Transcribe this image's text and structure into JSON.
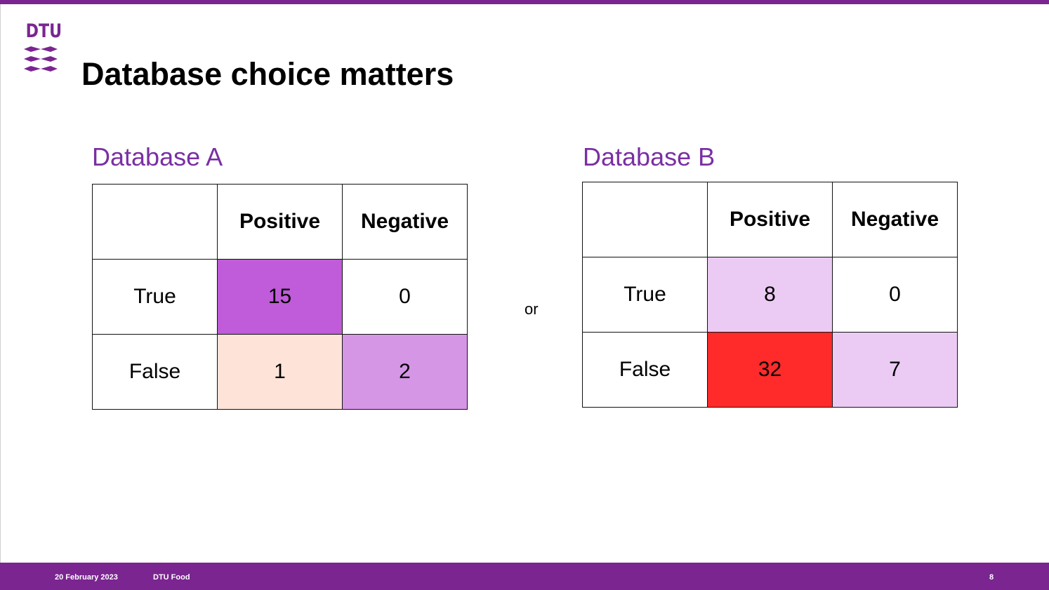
{
  "brand": {
    "logo_text": "DTU",
    "color": "#7a2590"
  },
  "slide": {
    "title": "Database choice matters",
    "or_label": "or"
  },
  "tables": [
    {
      "title": "Database A",
      "header": [
        "",
        "Positive",
        "Negative"
      ],
      "rows": [
        {
          "label": "True",
          "values": [
            "15",
            "0"
          ],
          "colors": [
            "#c05bd9",
            "#ffffff"
          ]
        },
        {
          "label": "False",
          "values": [
            "1",
            "2"
          ],
          "colors": [
            "#fde3d8",
            "#d596e6"
          ]
        }
      ]
    },
    {
      "title": "Database B",
      "header": [
        "",
        "Positive",
        "Negative"
      ],
      "rows": [
        {
          "label": "True",
          "values": [
            "8",
            "0"
          ],
          "colors": [
            "#ebcbf3",
            "#ffffff"
          ]
        },
        {
          "label": "False",
          "values": [
            "32",
            "7"
          ],
          "colors": [
            "#ff2a2a",
            "#ebcbf3"
          ]
        }
      ]
    }
  ],
  "footer": {
    "date": "20 February 2023",
    "unit": "DTU Food",
    "page": "8"
  }
}
